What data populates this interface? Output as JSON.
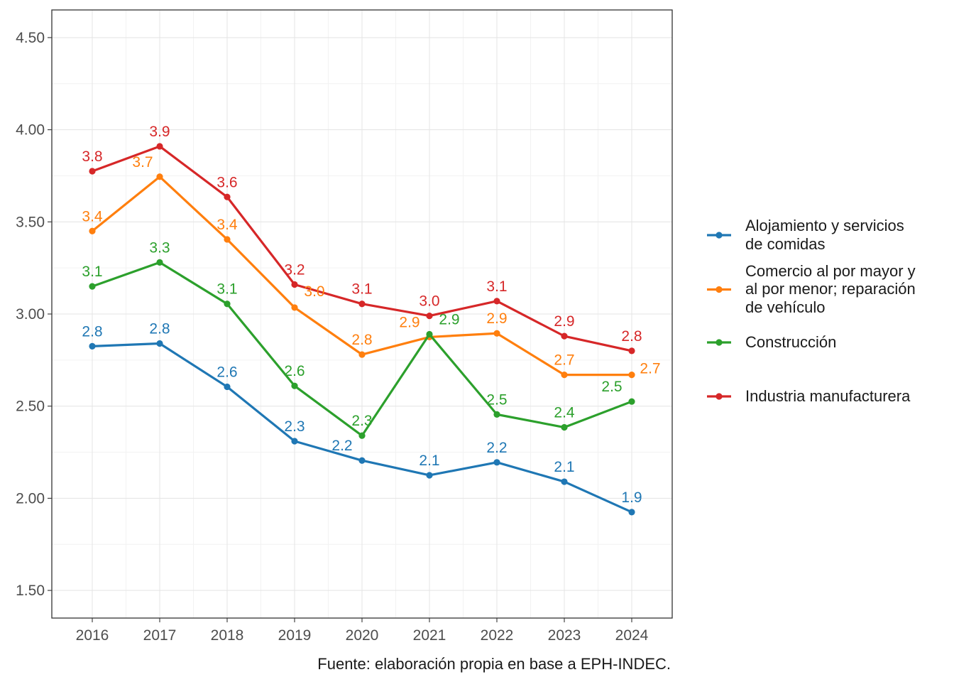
{
  "chart_data": {
    "type": "line",
    "x": [
      2016,
      2017,
      2018,
      2019,
      2020,
      2021,
      2022,
      2023,
      2024
    ],
    "x_tick_labels": [
      "2016",
      "2017",
      "2018",
      "2019",
      "2020",
      "2021",
      "2022",
      "2023",
      "2024"
    ],
    "y_ticks": [
      1.5,
      2.0,
      2.5,
      3.0,
      3.5,
      4.0,
      4.5
    ],
    "y_tick_labels": [
      "1.50",
      "2.00",
      "2.50",
      "3.00",
      "3.50",
      "4.00",
      "4.50"
    ],
    "ylim": [
      1.35,
      4.65
    ],
    "grid": true,
    "legend_position": "right",
    "caption": "Fuente: elaboración propia en base a EPH-INDEC.",
    "series": [
      {
        "name": "Alojamiento y servicios de comidas",
        "legend_lines": [
          "Alojamiento y servicios",
          "de comidas"
        ],
        "color": "#1f77b4",
        "values": [
          2.825,
          2.84,
          2.605,
          2.31,
          2.205,
          2.125,
          2.195,
          2.09,
          1.925
        ],
        "labels": [
          "2.8",
          "2.8",
          "2.6",
          "2.3",
          "2.2",
          "2.1",
          "2.2",
          "2.1",
          "1.9"
        ]
      },
      {
        "name": "Comercio al por mayor y al por menor; reparación de vehículo",
        "legend_lines": [
          "Comercio al por mayor y",
          "al por menor; reparación",
          "de vehículo"
        ],
        "color": "#ff7f0e",
        "values": [
          3.45,
          3.745,
          3.405,
          3.035,
          2.78,
          2.875,
          2.895,
          2.67,
          2.67
        ],
        "labels": [
          "3.4",
          "3.7",
          "3.4",
          "3.0",
          "2.8",
          "2.9",
          "2.9",
          "2.7",
          "2.7"
        ]
      },
      {
        "name": "Construcción",
        "legend_lines": [
          "Construcción"
        ],
        "color": "#2ca02c",
        "values": [
          3.15,
          3.28,
          3.055,
          2.61,
          2.34,
          2.89,
          2.455,
          2.385,
          2.525
        ],
        "labels": [
          "3.1",
          "3.3",
          "3.1",
          "2.6",
          "2.3",
          "2.9",
          "2.5",
          "2.4",
          "2.5"
        ]
      },
      {
        "name": "Industria manufacturera",
        "legend_lines": [
          "Industria manufacturera"
        ],
        "color": "#d62728",
        "values": [
          3.775,
          3.91,
          3.635,
          3.16,
          3.055,
          2.99,
          3.07,
          2.88,
          2.8
        ],
        "labels": [
          "3.8",
          "3.9",
          "3.6",
          "3.2",
          "3.1",
          "3.0",
          "3.1",
          "2.9",
          "2.8"
        ]
      }
    ]
  }
}
